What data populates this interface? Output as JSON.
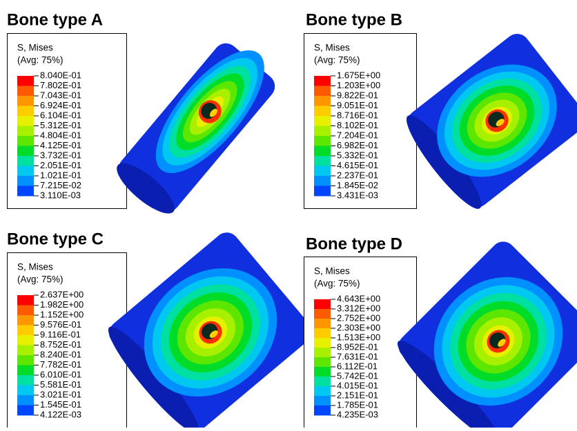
{
  "legend_colors": [
    "#ff0000",
    "#ff5a00",
    "#ff9600",
    "#ffcc00",
    "#e6f000",
    "#a6f000",
    "#5ce600",
    "#00dc28",
    "#00e0a0",
    "#00c8f0",
    "#0090ff",
    "#0046ff",
    "#0000e6"
  ],
  "panels": [
    {
      "title": "Bone type A",
      "legend_title": "S, Mises",
      "legend_subtitle": "(Avg: 75%)",
      "labels": [
        "8.040E-01",
        "7.802E-01",
        "7.043E-01",
        "6.924E-01",
        "6.104E-01",
        "5.312E-01",
        "4.804E-01",
        "4.125E-01",
        "3.732E-01",
        "2.051E-01",
        "1.021E-01",
        "7.215E-02",
        "3.110E-03"
      ]
    },
    {
      "title": "Bone type B",
      "legend_title": "S, Mises",
      "legend_subtitle": "(Avg: 75%)",
      "labels": [
        "1.675E+00",
        "1.203E+00",
        "9.822E-01",
        "9.051E-01",
        "8.716E-01",
        "8.102E-01",
        "7.204E-01",
        "6.982E-01",
        "5.332E-01",
        "4.615E-01",
        "2.237E-01",
        "1.845E-02",
        "3.431E-03"
      ]
    },
    {
      "title": "Bone type C",
      "legend_title": "S, Mises",
      "legend_subtitle": "(Avg: 75%)",
      "labels": [
        "2.637E+00",
        "1.982E+00",
        "1.152E+00",
        "9.576E-01",
        "9.116E-01",
        "8.752E-01",
        "8.240E-01",
        "7.782E-01",
        "6.010E-01",
        "5.581E-01",
        "3.021E-01",
        "1.545E-01",
        "4.122E-03"
      ]
    },
    {
      "title": "Bone type D",
      "legend_title": "S, Mises",
      "legend_subtitle": "(Avg: 75%)",
      "labels": [
        "4.643E+00",
        "3.312E+00",
        "2.752E+00",
        "2.303E+00",
        "1.513E+00",
        "8.952E-01",
        "7.631E-01",
        "6.112E-01",
        "5.742E-01",
        "4.015E-01",
        "2.151E-01",
        "1.785E-01",
        "4.235E-03"
      ]
    }
  ]
}
